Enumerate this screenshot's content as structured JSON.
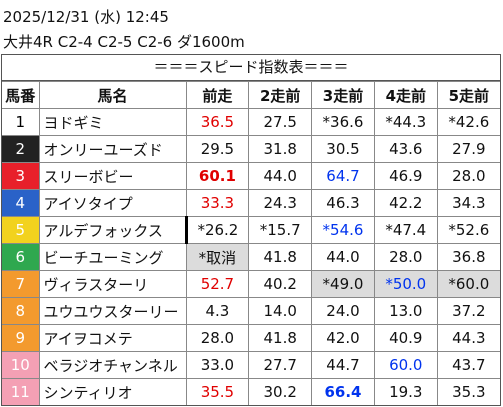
{
  "header": {
    "datetime": "2025/12/31 (水) 12:45",
    "race": "大井4R C2-4 C2-5 C2-6 ダ1600m"
  },
  "table": {
    "title": "＝＝＝スピード指数表＝＝＝",
    "columns": [
      "馬番",
      "馬名",
      "前走",
      "2走前",
      "3走前",
      "4走前",
      "5走前"
    ],
    "rows": [
      [
        "1",
        "ヨドギミ",
        "36.5",
        "27.5",
        "*36.6",
        "*44.3",
        "*42.6"
      ],
      [
        "2",
        "オンリーユーズド",
        "29.5",
        "31.8",
        "30.5",
        "43.6",
        "27.9"
      ],
      [
        "3",
        "スリーボビー",
        "60.1",
        "44.0",
        "64.7",
        "46.9",
        "28.0"
      ],
      [
        "4",
        "アイソタイプ",
        "33.3",
        "24.3",
        "46.3",
        "42.2",
        "34.3"
      ],
      [
        "5",
        "アルデフォックス",
        "*26.2",
        "*15.7",
        "*54.6",
        "*47.4",
        "*52.6"
      ],
      [
        "6",
        "ビーチユーミング",
        "*取消",
        "41.8",
        "44.0",
        "28.0",
        "36.8"
      ],
      [
        "7",
        "ヴィラスターリ",
        "52.7",
        "40.2",
        "*49.0",
        "*50.0",
        "*60.0"
      ],
      [
        "8",
        "ユウユウスターリー",
        "4.3",
        "14.0",
        "24.0",
        "13.0",
        "37.2"
      ],
      [
        "9",
        "アイヲコメテ",
        "28.0",
        "41.8",
        "42.0",
        "40.9",
        "44.3"
      ],
      [
        "10",
        "ベラジオチャンネル",
        "33.0",
        "27.7",
        "44.7",
        "60.0",
        "43.7"
      ],
      [
        "11",
        "シンティリオ",
        "35.5",
        "30.2",
        "66.4",
        "19.3",
        "35.3"
      ]
    ]
  }
}
